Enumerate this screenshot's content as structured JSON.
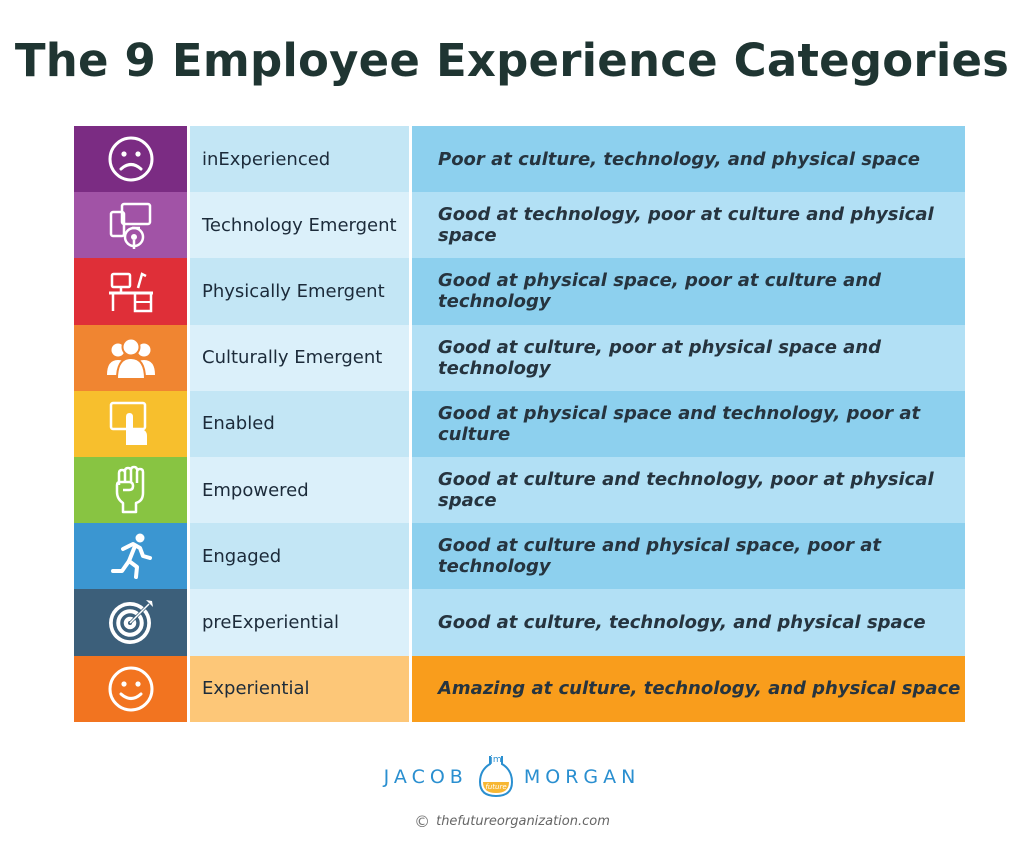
{
  "title": "The 9 Employee Experience Categories",
  "rows": [
    {
      "icon": "sad-face-icon",
      "icon_color": "#7b2c83",
      "name": "inExperienced",
      "name_bg": "#c3e6f5",
      "description": "Poor at culture, technology, and physical space",
      "desc_bg": "#8dd0ee"
    },
    {
      "icon": "devices-icon",
      "icon_color": "#a153a6",
      "name": "Technology Emergent",
      "name_bg": "#dbf0fa",
      "description": "Good at technology, poor at culture and physical space",
      "desc_bg": "#b2e0f5"
    },
    {
      "icon": "desk-icon",
      "icon_color": "#df2f38",
      "name": "Physically Emergent",
      "name_bg": "#c3e6f5",
      "description": "Good at physical space, poor at culture and technology",
      "desc_bg": "#8dd0ee"
    },
    {
      "icon": "people-icon",
      "icon_color": "#f08531",
      "name": "Culturally Emergent",
      "name_bg": "#dbf0fa",
      "description": "Good at culture, poor at physical space and technology",
      "desc_bg": "#b2e0f5"
    },
    {
      "icon": "touch-icon",
      "icon_color": "#f7bf2d",
      "name": "Enabled",
      "name_bg": "#c3e6f5",
      "description": "Good at physical space and technology, poor at culture",
      "desc_bg": "#8dd0ee"
    },
    {
      "icon": "fist-icon",
      "icon_color": "#88c442",
      "name": "Empowered",
      "name_bg": "#dbf0fa",
      "description": "Good at culture and technology, poor at physical space",
      "desc_bg": "#b2e0f5"
    },
    {
      "icon": "runner-icon",
      "icon_color": "#3b96d1",
      "name": "Engaged",
      "name_bg": "#c3e6f5",
      "description": "Good at culture and physical space, poor at technology",
      "desc_bg": "#8dd0ee"
    },
    {
      "icon": "target-icon",
      "icon_color": "#3c5f7a",
      "name": "preExperiential",
      "name_bg": "#dbf0fa",
      "description": "Good at culture, technology, and physical space",
      "desc_bg": "#b2e0f5"
    },
    {
      "icon": "happy-face-icon",
      "icon_color": "#f27420",
      "name": "Experiential",
      "name_bg": "#fdc778",
      "description": "Amazing at culture, technology, and physical space",
      "desc_bg": "#f99d1c"
    }
  ],
  "brand": {
    "first": "JACOB",
    "last": "MORGAN",
    "bulb_text": "future",
    "bulb_initials": "jm",
    "website": "thefutureorganization.com"
  }
}
